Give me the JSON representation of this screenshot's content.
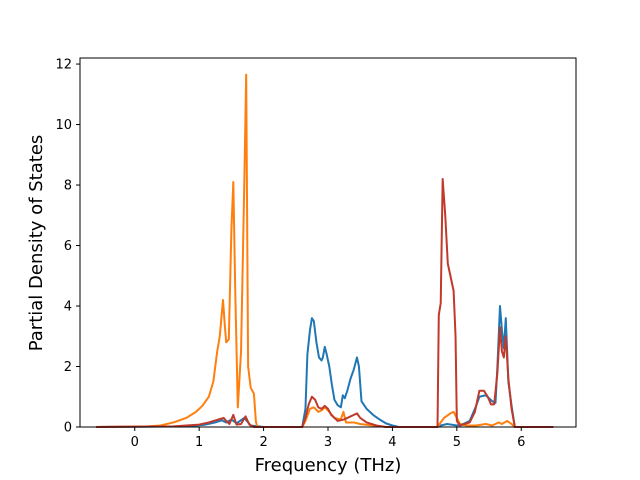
{
  "chart_data": {
    "type": "line",
    "title": "",
    "xlabel": "Frequency (THz)",
    "ylabel": "Partial Density of States",
    "xlim": [
      -0.85,
      6.85
    ],
    "ylim": [
      0,
      12.2
    ],
    "xticks": [
      0,
      1,
      2,
      3,
      4,
      5,
      6
    ],
    "yticks": [
      0,
      2,
      4,
      6,
      8,
      10,
      12
    ],
    "grid": false,
    "legend": "none",
    "series": [
      {
        "color": "#1f77b4",
        "points": [
          [
            -0.6,
            0
          ],
          [
            0.8,
            0.02
          ],
          [
            1.1,
            0.08
          ],
          [
            1.25,
            0.15
          ],
          [
            1.35,
            0.22
          ],
          [
            1.42,
            0.15
          ],
          [
            1.5,
            0.25
          ],
          [
            1.58,
            0.12
          ],
          [
            1.7,
            0.3
          ],
          [
            1.8,
            0.05
          ],
          [
            2.0,
            0
          ],
          [
            2.6,
            0
          ],
          [
            2.65,
            0.6
          ],
          [
            2.68,
            2.4
          ],
          [
            2.72,
            3.2
          ],
          [
            2.75,
            3.6
          ],
          [
            2.78,
            3.5
          ],
          [
            2.82,
            2.8
          ],
          [
            2.86,
            2.3
          ],
          [
            2.9,
            2.2
          ],
          [
            2.92,
            2.3
          ],
          [
            2.95,
            2.65
          ],
          [
            2.98,
            2.4
          ],
          [
            3.02,
            2.0
          ],
          [
            3.06,
            1.4
          ],
          [
            3.1,
            0.9
          ],
          [
            3.15,
            0.72
          ],
          [
            3.2,
            0.65
          ],
          [
            3.23,
            1.05
          ],
          [
            3.26,
            0.95
          ],
          [
            3.3,
            1.2
          ],
          [
            3.35,
            1.6
          ],
          [
            3.4,
            1.9
          ],
          [
            3.45,
            2.3
          ],
          [
            3.48,
            2.0
          ],
          [
            3.52,
            0.85
          ],
          [
            3.6,
            0.6
          ],
          [
            3.7,
            0.4
          ],
          [
            3.8,
            0.25
          ],
          [
            3.9,
            0.12
          ],
          [
            4.0,
            0.05
          ],
          [
            4.1,
            0
          ],
          [
            4.7,
            0
          ],
          [
            4.75,
            0.05
          ],
          [
            4.85,
            0.1
          ],
          [
            5.0,
            0.05
          ],
          [
            5.1,
            0.1
          ],
          [
            5.2,
            0.2
          ],
          [
            5.3,
            0.7
          ],
          [
            5.35,
            1.0
          ],
          [
            5.45,
            1.05
          ],
          [
            5.5,
            0.95
          ],
          [
            5.55,
            0.85
          ],
          [
            5.6,
            0.8
          ],
          [
            5.63,
            2.0
          ],
          [
            5.67,
            4.0
          ],
          [
            5.7,
            3.2
          ],
          [
            5.73,
            2.6
          ],
          [
            5.76,
            3.6
          ],
          [
            5.8,
            1.5
          ],
          [
            5.85,
            0.7
          ],
          [
            5.9,
            0
          ],
          [
            6.5,
            0
          ]
        ]
      },
      {
        "color": "#ff7f0e",
        "points": [
          [
            -0.6,
            0
          ],
          [
            0.2,
            0.02
          ],
          [
            0.4,
            0.05
          ],
          [
            0.6,
            0.15
          ],
          [
            0.8,
            0.3
          ],
          [
            0.95,
            0.5
          ],
          [
            1.05,
            0.7
          ],
          [
            1.15,
            1.0
          ],
          [
            1.22,
            1.5
          ],
          [
            1.28,
            2.5
          ],
          [
            1.32,
            3.0
          ],
          [
            1.37,
            4.2
          ],
          [
            1.4,
            3.3
          ],
          [
            1.42,
            2.8
          ],
          [
            1.46,
            2.9
          ],
          [
            1.5,
            6.5
          ],
          [
            1.53,
            8.1
          ],
          [
            1.56,
            4.5
          ],
          [
            1.6,
            0.65
          ],
          [
            1.65,
            2.5
          ],
          [
            1.7,
            8.0
          ],
          [
            1.73,
            11.65
          ],
          [
            1.76,
            2.0
          ],
          [
            1.8,
            1.3
          ],
          [
            1.85,
            1.1
          ],
          [
            1.88,
            0.2
          ],
          [
            1.9,
            0
          ],
          [
            2.6,
            0
          ],
          [
            2.65,
            0.2
          ],
          [
            2.72,
            0.6
          ],
          [
            2.78,
            0.65
          ],
          [
            2.85,
            0.5
          ],
          [
            2.9,
            0.55
          ],
          [
            2.95,
            0.65
          ],
          [
            3.0,
            0.55
          ],
          [
            3.1,
            0.3
          ],
          [
            3.2,
            0.25
          ],
          [
            3.24,
            0.5
          ],
          [
            3.28,
            0.15
          ],
          [
            3.4,
            0.15
          ],
          [
            3.5,
            0.1
          ],
          [
            3.7,
            0.05
          ],
          [
            3.9,
            0
          ],
          [
            4.7,
            0
          ],
          [
            4.8,
            0.3
          ],
          [
            4.9,
            0.45
          ],
          [
            4.95,
            0.5
          ],
          [
            5.0,
            0.3
          ],
          [
            5.05,
            0.1
          ],
          [
            5.15,
            0.05
          ],
          [
            5.3,
            0.05
          ],
          [
            5.45,
            0.1
          ],
          [
            5.55,
            0.05
          ],
          [
            5.65,
            0.15
          ],
          [
            5.7,
            0.1
          ],
          [
            5.78,
            0.2
          ],
          [
            5.85,
            0.1
          ],
          [
            5.9,
            0
          ],
          [
            6.5,
            0
          ]
        ]
      },
      {
        "color": "#c0392b",
        "points": [
          [
            -0.6,
            0
          ],
          [
            0.6,
            0.02
          ],
          [
            1.0,
            0.08
          ],
          [
            1.15,
            0.15
          ],
          [
            1.3,
            0.25
          ],
          [
            1.38,
            0.3
          ],
          [
            1.42,
            0.2
          ],
          [
            1.47,
            0.1
          ],
          [
            1.53,
            0.4
          ],
          [
            1.58,
            0.08
          ],
          [
            1.65,
            0.1
          ],
          [
            1.72,
            0.35
          ],
          [
            1.78,
            0.08
          ],
          [
            1.85,
            0
          ],
          [
            2.6,
            0
          ],
          [
            2.65,
            0.3
          ],
          [
            2.7,
            0.75
          ],
          [
            2.75,
            1.0
          ],
          [
            2.8,
            0.9
          ],
          [
            2.85,
            0.65
          ],
          [
            2.9,
            0.6
          ],
          [
            2.95,
            0.7
          ],
          [
            3.0,
            0.6
          ],
          [
            3.05,
            0.4
          ],
          [
            3.15,
            0.2
          ],
          [
            3.25,
            0.25
          ],
          [
            3.35,
            0.35
          ],
          [
            3.45,
            0.45
          ],
          [
            3.5,
            0.3
          ],
          [
            3.6,
            0.15
          ],
          [
            3.75,
            0.05
          ],
          [
            3.9,
            0
          ],
          [
            4.7,
            0
          ],
          [
            4.72,
            3.7
          ],
          [
            4.75,
            4.1
          ],
          [
            4.78,
            8.2
          ],
          [
            4.82,
            7.0
          ],
          [
            4.86,
            5.4
          ],
          [
            4.9,
            5.0
          ],
          [
            4.95,
            4.5
          ],
          [
            4.98,
            3.0
          ],
          [
            5.0,
            0.2
          ],
          [
            5.05,
            0.05
          ],
          [
            5.2,
            0.15
          ],
          [
            5.28,
            0.5
          ],
          [
            5.35,
            1.2
          ],
          [
            5.42,
            1.2
          ],
          [
            5.48,
            1.0
          ],
          [
            5.53,
            0.75
          ],
          [
            5.58,
            0.75
          ],
          [
            5.63,
            1.8
          ],
          [
            5.67,
            3.3
          ],
          [
            5.7,
            2.5
          ],
          [
            5.73,
            2.3
          ],
          [
            5.76,
            3.0
          ],
          [
            5.8,
            1.6
          ],
          [
            5.85,
            0.6
          ],
          [
            5.9,
            0
          ],
          [
            6.5,
            0
          ]
        ]
      }
    ]
  }
}
